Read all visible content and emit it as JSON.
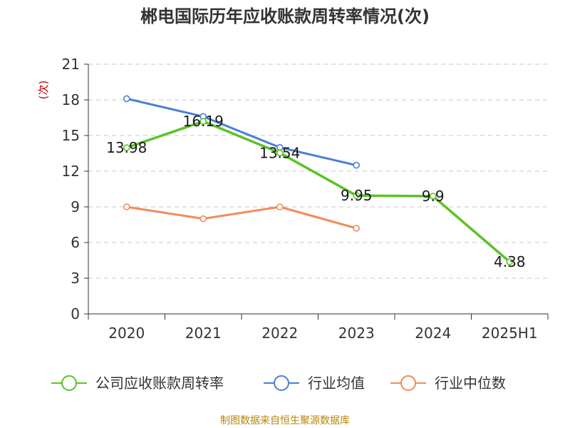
{
  "chart_data": {
    "type": "line",
    "title": "郴电国际历年应收账款周转率情况(次)",
    "ylabel": "(次)",
    "xlabel": "",
    "categories": [
      "2020",
      "2021",
      "2022",
      "2023",
      "2024",
      "2025H1"
    ],
    "ylim": [
      0,
      21
    ],
    "yticks": [
      0,
      3,
      6,
      9,
      12,
      15,
      18,
      21
    ],
    "grid": true,
    "legend_position": "bottom",
    "series": [
      {
        "name": "公司应收账款周转率",
        "color": "#5dc228",
        "values": [
          13.98,
          16.19,
          13.54,
          9.95,
          9.9,
          4.38
        ],
        "labels": [
          "13.98",
          "16.19",
          "13.54",
          "9.95",
          "9.9",
          "4.38"
        ]
      },
      {
        "name": "行业均值",
        "color": "#4a7fd6",
        "values": [
          18.1,
          16.6,
          14.0,
          12.5,
          null,
          null
        ]
      },
      {
        "name": "行业中位数",
        "color": "#f08c5a",
        "values": [
          9.0,
          8.0,
          9.0,
          7.2,
          null,
          null
        ]
      }
    ]
  },
  "source": "制图数据来自恒生聚源数据库"
}
